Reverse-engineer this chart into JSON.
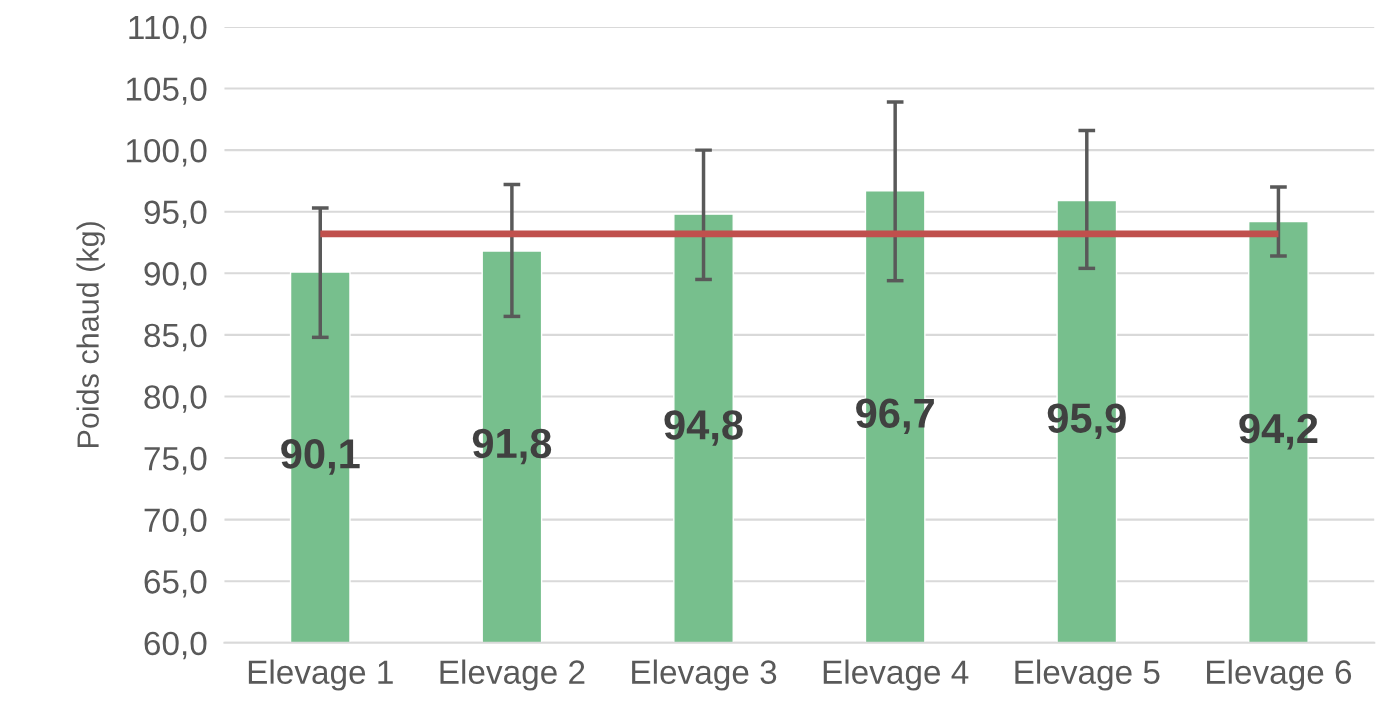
{
  "chart_data": {
    "type": "bar",
    "ylabel": "Poids chaud (kg)",
    "categories": [
      "Elevage 1",
      "Elevage 2",
      "Elevage 3",
      "Elevage 4",
      "Elevage 5",
      "Elevage 6"
    ],
    "values": [
      90.1,
      91.8,
      94.8,
      96.7,
      95.9,
      94.2
    ],
    "value_labels": [
      "90,1",
      "91,8",
      "94,8",
      "96,7",
      "95,9",
      "94,2"
    ],
    "color": "#77bf8d",
    "errors": [
      [
        84.8,
        95.3
      ],
      [
        86.5,
        97.2
      ],
      [
        89.5,
        100.0
      ],
      [
        89.4,
        103.9
      ],
      [
        90.4,
        101.6
      ],
      [
        91.4,
        97.0
      ]
    ],
    "ref_lines": [
      {
        "axis": "y",
        "value": 93.2,
        "color": "#c0504d"
      }
    ],
    "ylim": [
      60,
      110
    ],
    "yticks": [
      {
        "value": 60,
        "label": "60,0"
      },
      {
        "value": 65,
        "label": "65,0"
      },
      {
        "value": 70,
        "label": "70,0"
      },
      {
        "value": 75,
        "label": "75,0"
      },
      {
        "value": 80,
        "label": "80,0"
      },
      {
        "value": 85,
        "label": "85,0"
      },
      {
        "value": 90,
        "label": "90,0"
      },
      {
        "value": 95,
        "label": "95,0"
      },
      {
        "value": 100,
        "label": "100,0"
      },
      {
        "value": 105,
        "label": "105,0"
      },
      {
        "value": 110,
        "label": "110,0"
      }
    ],
    "grid": "y",
    "legend": false
  }
}
